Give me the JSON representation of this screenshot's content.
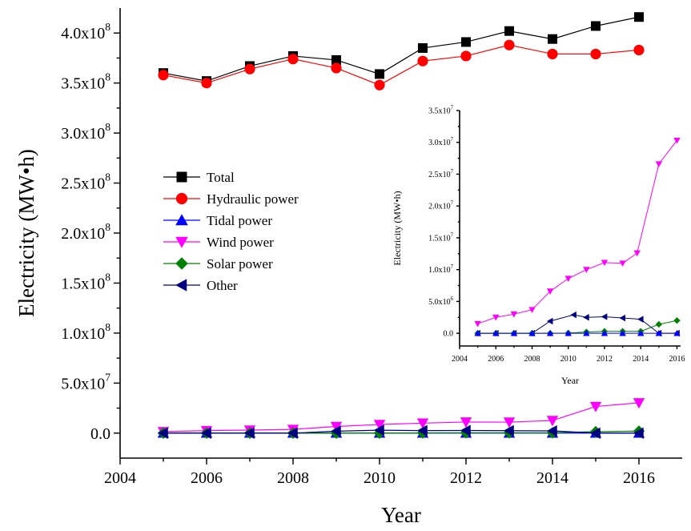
{
  "chart_data": [
    {
      "type": "line",
      "title": "",
      "xlabel": "Year",
      "ylabel": "Electricity (MW•h)",
      "xlim": [
        2004,
        2017
      ],
      "ylim": [
        -25000000,
        425000000
      ],
      "xticks": [
        2004,
        2006,
        2008,
        2010,
        2012,
        2014,
        2016
      ],
      "xtick_labels": [
        "2004",
        "2006",
        "2008",
        "2010",
        "2012",
        "2014",
        "2016"
      ],
      "yticks": [
        0,
        50000000,
        100000000,
        150000000,
        200000000,
        250000000,
        300000000,
        350000000,
        400000000
      ],
      "ytick_labels": [
        {
          "text": "0.0",
          "mantissa": "",
          "exp": ""
        },
        {
          "text": "",
          "mantissa": "5.0x10",
          "exp": "7"
        },
        {
          "text": "",
          "mantissa": "1.0x10",
          "exp": "8"
        },
        {
          "text": "",
          "mantissa": "1.5x10",
          "exp": "8"
        },
        {
          "text": "",
          "mantissa": "2.0x10",
          "exp": "8"
        },
        {
          "text": "",
          "mantissa": "2.5x10",
          "exp": "8"
        },
        {
          "text": "",
          "mantissa": "3.0x10",
          "exp": "8"
        },
        {
          "text": "",
          "mantissa": "3.5x10",
          "exp": "8"
        },
        {
          "text": "",
          "mantissa": "4.0x10",
          "exp": "8"
        }
      ],
      "x": [
        2005,
        2006,
        2007,
        2008,
        2009,
        2010,
        2011,
        2012,
        2013,
        2014,
        2015,
        2016
      ],
      "legend_position": "center-left",
      "series": [
        {
          "name": "Total",
          "marker": "square",
          "color": "#000000",
          "values": [
            360000000,
            352000000,
            367000000,
            377000000,
            373000000,
            359000000,
            385000000,
            391000000,
            402000000,
            394000000,
            407000000,
            416000000
          ]
        },
        {
          "name": "Hydraulic power",
          "marker": "circle",
          "color": "#ff0000",
          "values": [
            358000000,
            350000000,
            364000000,
            374000000,
            365000000,
            348000000,
            372000000,
            377000000,
            388000000,
            379000000,
            379000000,
            383000000
          ]
        },
        {
          "name": "Tidal power",
          "marker": "triangle-up",
          "color": "#0000ff",
          "values": [
            0,
            0,
            0,
            0,
            0,
            0,
            0,
            0,
            0,
            0,
            0,
            0
          ]
        },
        {
          "name": "Wind power",
          "marker": "triangle-down",
          "color": "#ff00ff",
          "values": [
            1500000,
            2500000,
            3000000,
            3700000,
            6600000,
            8600000,
            10000000,
            11100000,
            11000000,
            12600000,
            26600000,
            30300000
          ]
        },
        {
          "name": "Solar power",
          "marker": "diamond",
          "color": "#008000",
          "values": [
            0,
            0,
            0,
            0,
            0,
            30000,
            200000,
            300000,
            300000,
            300000,
            1400000,
            2000000
          ]
        },
        {
          "name": "Other",
          "marker": "triangle-left",
          "color": "#000080",
          "values": [
            0,
            0,
            0,
            0,
            1900000,
            2900000,
            2500000,
            2600000,
            2400000,
            2200000,
            0,
            0
          ]
        }
      ]
    },
    {
      "type": "line",
      "title": "",
      "xlabel": "Year",
      "ylabel": "Electricity (MW•h)",
      "xlim": [
        2004,
        2016.2
      ],
      "ylim": [
        -2000000,
        35000000
      ],
      "xticks": [
        2004,
        2006,
        2008,
        2010,
        2012,
        2014,
        2016
      ],
      "xtick_labels": [
        "2004",
        "2006",
        "2008",
        "2010",
        "2012",
        "2014",
        "2016"
      ],
      "yticks": [
        0,
        5000000,
        10000000,
        15000000,
        20000000,
        25000000,
        30000000,
        35000000
      ],
      "ytick_labels": [
        {
          "text": "0.0",
          "mantissa": "",
          "exp": ""
        },
        {
          "text": "",
          "mantissa": "5.0x10",
          "exp": "6"
        },
        {
          "text": "",
          "mantissa": "1.0x10",
          "exp": "7"
        },
        {
          "text": "",
          "mantissa": "1.5x10",
          "exp": "7"
        },
        {
          "text": "",
          "mantissa": "2.0x10",
          "exp": "7"
        },
        {
          "text": "",
          "mantissa": "2.5x10",
          "exp": "7"
        },
        {
          "text": "",
          "mantissa": "3.0x10",
          "exp": "7"
        },
        {
          "text": "",
          "mantissa": "3.5x10",
          "exp": "7"
        }
      ],
      "series": [
        {
          "name": "Wind power",
          "marker": "triangle-down",
          "color": "#ff00ff",
          "x": [
            2005,
            2006,
            2007,
            2008,
            2009,
            2010,
            2011,
            2012,
            2013,
            2013.8,
            2015,
            2016
          ],
          "values": [
            1500000,
            2500000,
            3000000,
            3700000,
            6600000,
            8600000,
            10000000,
            11100000,
            11000000,
            12600000,
            26600000,
            30300000
          ]
        },
        {
          "name": "Other",
          "marker": "triangle-left",
          "color": "#000080",
          "x": [
            2005,
            2006,
            2007,
            2008,
            2009,
            2010.3,
            2011,
            2012,
            2013,
            2014,
            2015,
            2016
          ],
          "values": [
            0,
            0,
            0,
            0,
            1900000,
            2900000,
            2500000,
            2600000,
            2400000,
            2200000,
            0,
            0
          ]
        },
        {
          "name": "Solar power",
          "marker": "diamond",
          "color": "#008000",
          "x": [
            2005,
            2006,
            2007,
            2008,
            2009,
            2010,
            2011,
            2012,
            2013,
            2014,
            2015,
            2016
          ],
          "values": [
            0,
            0,
            0,
            0,
            0,
            30000,
            200000,
            300000,
            300000,
            300000,
            1400000,
            2000000
          ]
        },
        {
          "name": "Tidal power",
          "marker": "triangle-up",
          "color": "#0000ff",
          "x": [
            2005,
            2006,
            2007,
            2008,
            2009,
            2010,
            2011,
            2012,
            2013,
            2014,
            2015,
            2016
          ],
          "values": [
            0,
            0,
            0,
            0,
            0,
            0,
            0,
            0,
            0,
            0,
            0,
            0
          ]
        }
      ]
    }
  ]
}
